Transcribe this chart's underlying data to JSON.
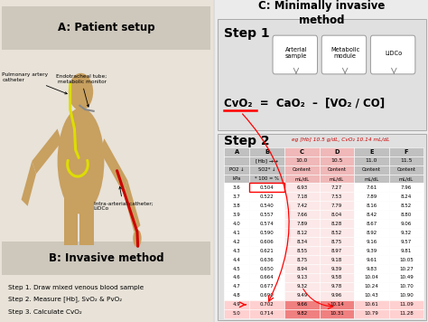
{
  "title_a": "A: Patient setup",
  "title_b": "B: Invasive method",
  "title_c": "C: Minimally invasive\nmethod",
  "step1_boxes": [
    "Arterial\nsample",
    "Metabolic\nmodule",
    "LiDCo"
  ],
  "col_headers": [
    "A",
    "B",
    "C",
    "D",
    "E",
    "F"
  ],
  "row_hb": [
    "",
    "[Hb] →→",
    "10.0",
    "10.5",
    "11.0",
    "11.5"
  ],
  "row_label": [
    "PO2 ↓",
    "SO2* ↓",
    "Content",
    "Content",
    "Content",
    "Content"
  ],
  "row_units": [
    "kPa",
    "* 100 = %",
    "mL/dL",
    "mL/dL",
    "mL/dL",
    "mL/dL"
  ],
  "table_data": [
    [
      "3.6",
      "0.504",
      "6.93",
      "7.27",
      "7.61",
      "7.96"
    ],
    [
      "3.7",
      "0.522",
      "7.18",
      "7.53",
      "7.89",
      "8.24"
    ],
    [
      "3.8",
      "0.540",
      "7.42",
      "7.79",
      "8.16",
      "8.52"
    ],
    [
      "3.9",
      "0.557",
      "7.66",
      "8.04",
      "8.42",
      "8.80"
    ],
    [
      "4.0",
      "0.574",
      "7.89",
      "8.28",
      "8.67",
      "9.06"
    ],
    [
      "4.1",
      "0.590",
      "8.12",
      "8.52",
      "8.92",
      "9.32"
    ],
    [
      "4.2",
      "0.606",
      "8.34",
      "8.75",
      "9.16",
      "9.57"
    ],
    [
      "4.3",
      "0.621",
      "8.55",
      "8.97",
      "9.39",
      "9.81"
    ],
    [
      "4.4",
      "0.636",
      "8.75",
      "9.18",
      "9.61",
      "10.05"
    ],
    [
      "4.5",
      "0.650",
      "8.94",
      "9.39",
      "9.83",
      "10.27"
    ],
    [
      "4.6",
      "0.664",
      "9.13",
      "9.58",
      "10.04",
      "10.49"
    ],
    [
      "4.7",
      "0.677",
      "9.32",
      "9.78",
      "10.24",
      "10.70"
    ],
    [
      "4.8",
      "0.690",
      "9.49",
      "9.96",
      "10.43",
      "10.90"
    ],
    [
      "4.9",
      "0.702",
      "9.66",
      "10.14",
      "10.61",
      "11.09"
    ],
    [
      "5.0",
      "0.714",
      "9.82",
      "10.31",
      "10.79",
      "11.28"
    ]
  ],
  "b_steps": [
    "Step 1. Draw mixed venous blood sample",
    "Step 2. Measure [Hb], SvO₂ & PvO₂",
    "Step 3. Calculate CvO₂"
  ],
  "skin_color": "#c8a060",
  "left_panel_bg": "#e8e2d8",
  "header_bar_bg": "#cdc7bc",
  "right_panel_bg": "#ebebeb",
  "step_box_bg": "#e0e0e0",
  "step2_box_bg": "#e0e0e0",
  "table_gray_bg": "#c0c0c0",
  "table_pink_bg": "#f0b8b8",
  "table_white_bg": "#ffffff",
  "table_lightpink_bg": "#fce8e8",
  "highlight_row_bg": "#f08080",
  "highlight_row_light": "#ffd0d0"
}
